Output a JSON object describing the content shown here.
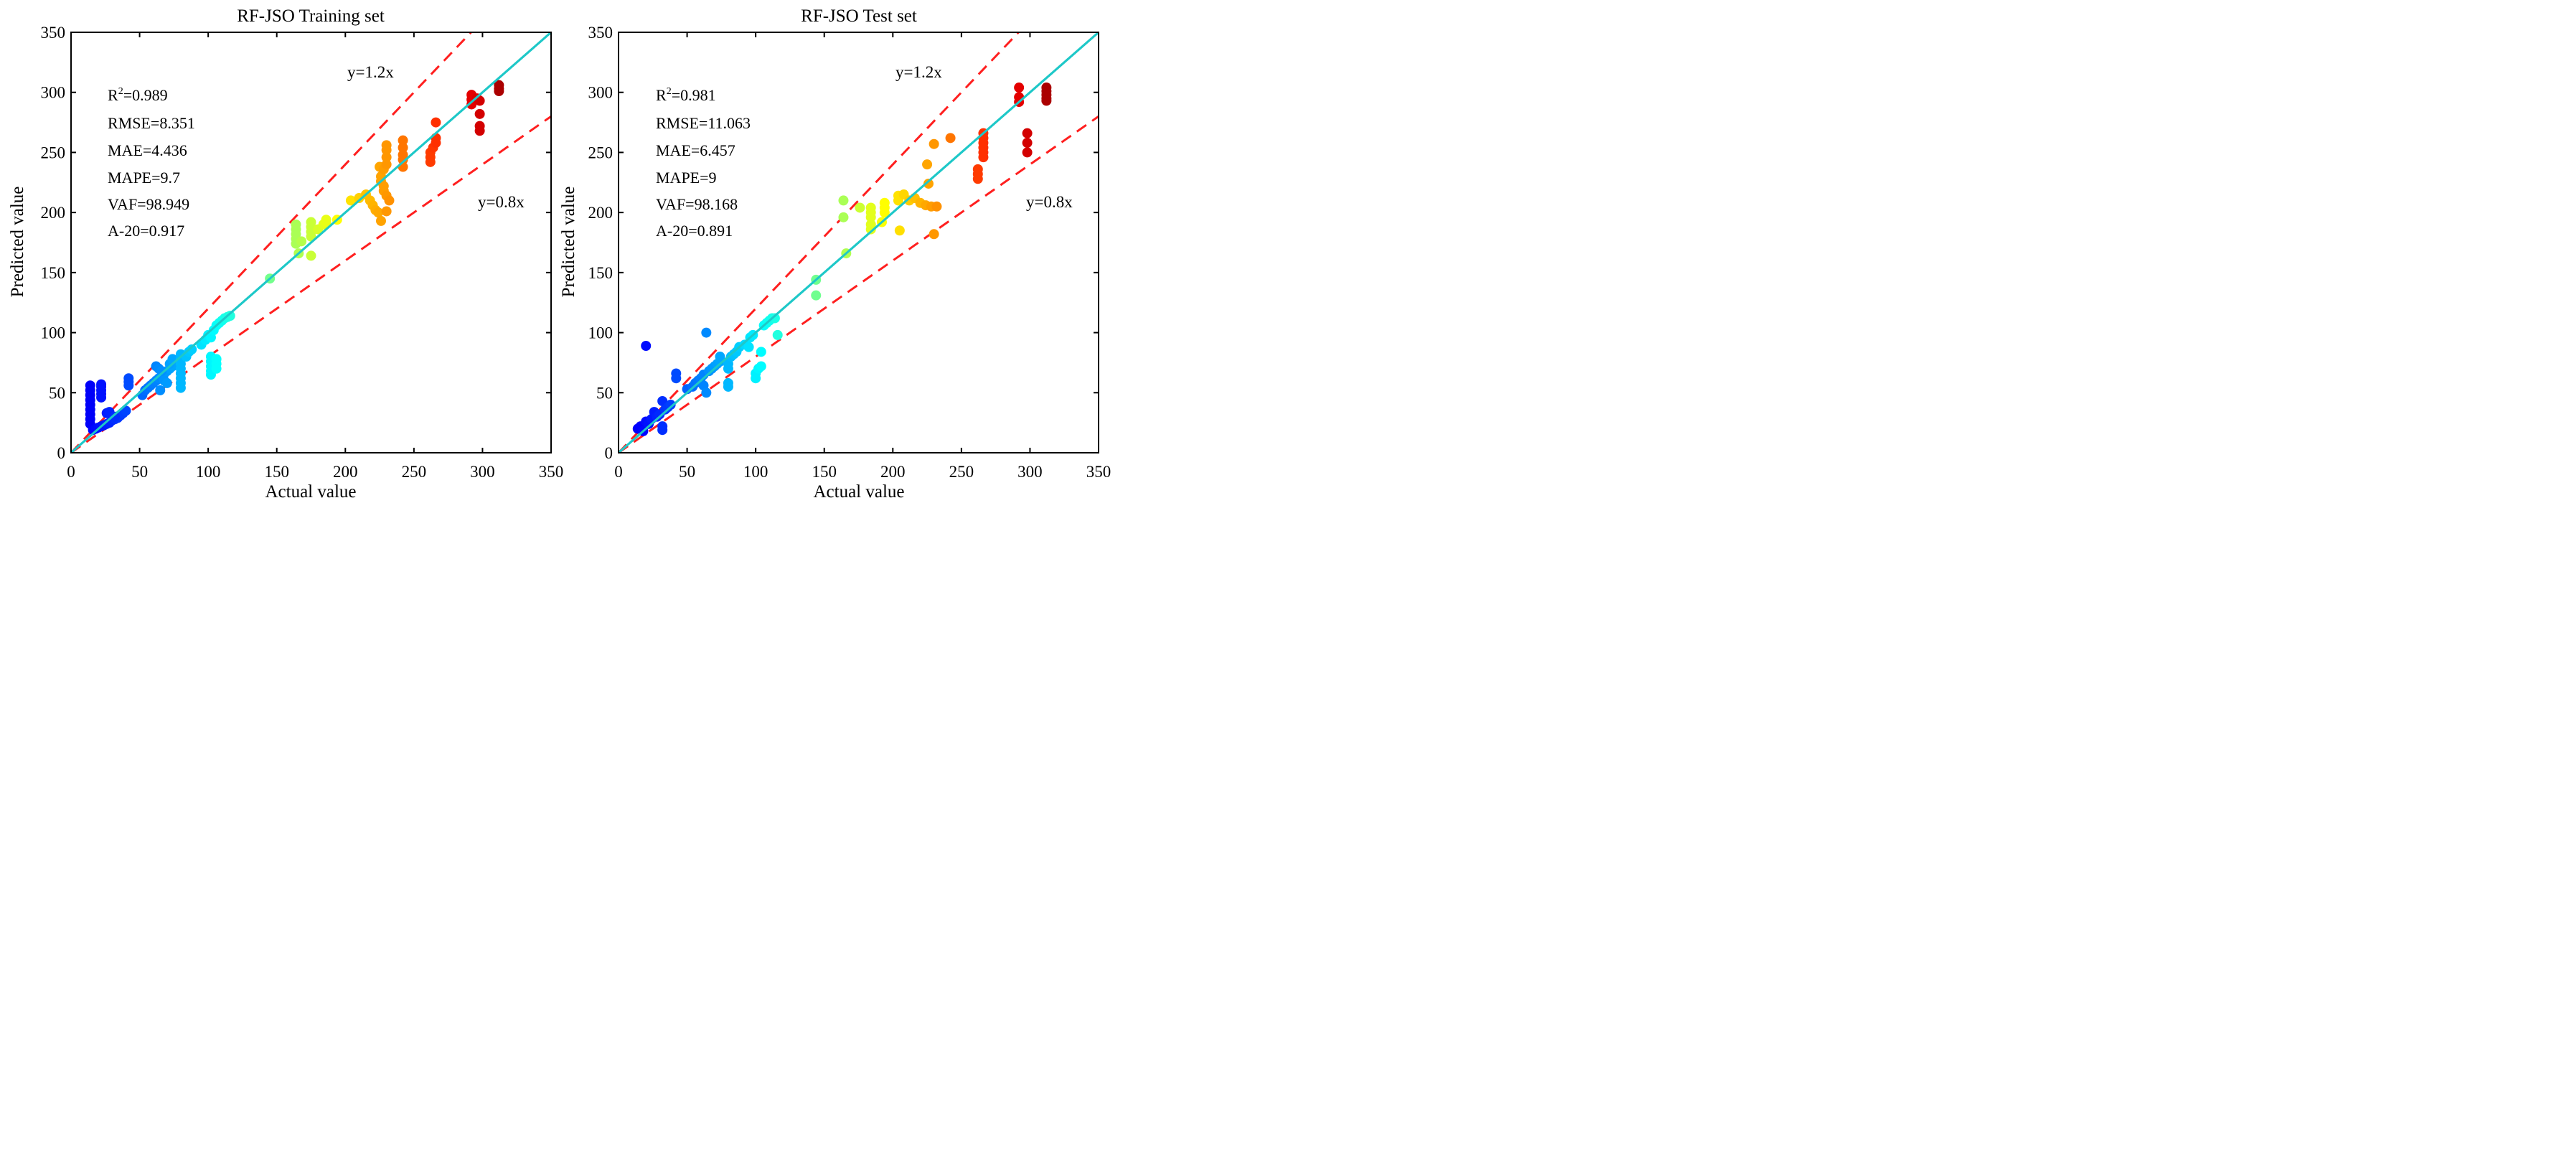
{
  "chart_data": [
    {
      "type": "scatter",
      "title": "RF-JSO Training set",
      "xlabel": "Actual value",
      "ylabel": "Predicted value",
      "xlim": [
        0,
        350
      ],
      "ylim": [
        0,
        350
      ],
      "xticks": [
        "0",
        "50",
        "100",
        "150",
        "200",
        "250",
        "300",
        "350"
      ],
      "yticks": [
        "0",
        "50",
        "100",
        "150",
        "200",
        "250",
        "300",
        "350"
      ],
      "stats": [
        "R²=0.989",
        "RMSE=8.351",
        "MAE=4.436",
        "MAPE=9.7",
        "VAF=98.949",
        "A-20=0.917"
      ],
      "reference_lines": [
        {
          "label": "y=1.2x",
          "slope": 1.2,
          "color": "#ff1f1f",
          "style": "dashed"
        },
        {
          "label": "y=0.8x",
          "slope": 0.8,
          "color": "#ff1f1f",
          "style": "dashed"
        },
        {
          "label": "y=x",
          "slope": 1.0,
          "color": "#1ec8c8",
          "style": "solid"
        }
      ],
      "points": [
        [
          14,
          56
        ],
        [
          14,
          52
        ],
        [
          14,
          48
        ],
        [
          14,
          44
        ],
        [
          14,
          40
        ],
        [
          14,
          36
        ],
        [
          14,
          32
        ],
        [
          14,
          28
        ],
        [
          14,
          24
        ],
        [
          16,
          19
        ],
        [
          18,
          20
        ],
        [
          20,
          21
        ],
        [
          22,
          22
        ],
        [
          24,
          23
        ],
        [
          26,
          24
        ],
        [
          28,
          25
        ],
        [
          30,
          27
        ],
        [
          32,
          28
        ],
        [
          34,
          29
        ],
        [
          36,
          31
        ],
        [
          38,
          33
        ],
        [
          40,
          35
        ],
        [
          22,
          57
        ],
        [
          22,
          55
        ],
        [
          22,
          52
        ],
        [
          22,
          49
        ],
        [
          22,
          46
        ],
        [
          26,
          33
        ],
        [
          28,
          34
        ],
        [
          32,
          30
        ],
        [
          42,
          62
        ],
        [
          42,
          59
        ],
        [
          42,
          56
        ],
        [
          52,
          48
        ],
        [
          54,
          52
        ],
        [
          56,
          54
        ],
        [
          58,
          56
        ],
        [
          60,
          58
        ],
        [
          62,
          60
        ],
        [
          64,
          62
        ],
        [
          66,
          64
        ],
        [
          68,
          66
        ],
        [
          70,
          68
        ],
        [
          72,
          70
        ],
        [
          74,
          72
        ],
        [
          62,
          72
        ],
        [
          64,
          70
        ],
        [
          66,
          68
        ],
        [
          68,
          60
        ],
        [
          70,
          58
        ],
        [
          65,
          52
        ],
        [
          72,
          74
        ],
        [
          74,
          78
        ],
        [
          80,
          82
        ],
        [
          80,
          78
        ],
        [
          80,
          74
        ],
        [
          80,
          70
        ],
        [
          80,
          66
        ],
        [
          80,
          62
        ],
        [
          80,
          58
        ],
        [
          80,
          54
        ],
        [
          84,
          80
        ],
        [
          86,
          84
        ],
        [
          88,
          86
        ],
        [
          102,
          80
        ],
        [
          102,
          76
        ],
        [
          102,
          72
        ],
        [
          102,
          68
        ],
        [
          102,
          65
        ],
        [
          106,
          78
        ],
        [
          106,
          74
        ],
        [
          106,
          70
        ],
        [
          95,
          90
        ],
        [
          98,
          94
        ],
        [
          100,
          98
        ],
        [
          102,
          96
        ],
        [
          104,
          102
        ],
        [
          106,
          106
        ],
        [
          108,
          108
        ],
        [
          110,
          110
        ],
        [
          112,
          112
        ],
        [
          114,
          113
        ],
        [
          116,
          114
        ],
        [
          145,
          145
        ],
        [
          164,
          190
        ],
        [
          164,
          186
        ],
        [
          164,
          182
        ],
        [
          164,
          178
        ],
        [
          164,
          174
        ],
        [
          166,
          166
        ],
        [
          168,
          176
        ],
        [
          175,
          192
        ],
        [
          175,
          188
        ],
        [
          175,
          184
        ],
        [
          175,
          180
        ],
        [
          175,
          164
        ],
        [
          180,
          186
        ],
        [
          184,
          190
        ],
        [
          186,
          192
        ],
        [
          186,
          194
        ],
        [
          194,
          194
        ],
        [
          204,
          210
        ],
        [
          210,
          212
        ],
        [
          215,
          215
        ],
        [
          218,
          210
        ],
        [
          220,
          206
        ],
        [
          222,
          202
        ],
        [
          224,
          200
        ],
        [
          226,
          230
        ],
        [
          226,
          226
        ],
        [
          228,
          222
        ],
        [
          228,
          218
        ],
        [
          230,
          214
        ],
        [
          230,
          201
        ],
        [
          232,
          210
        ],
        [
          226,
          193
        ],
        [
          225,
          238
        ],
        [
          228,
          236
        ],
        [
          230,
          240
        ],
        [
          230,
          246
        ],
        [
          230,
          252
        ],
        [
          230,
          256
        ],
        [
          242,
          260
        ],
        [
          242,
          254
        ],
        [
          242,
          248
        ],
        [
          242,
          244
        ],
        [
          242,
          238
        ],
        [
          262,
          242
        ],
        [
          262,
          246
        ],
        [
          262,
          250
        ],
        [
          264,
          254
        ],
        [
          266,
          258
        ],
        [
          266,
          262
        ],
        [
          292,
          298
        ],
        [
          292,
          294
        ],
        [
          292,
          290
        ],
        [
          296,
          295
        ],
        [
          298,
          293
        ],
        [
          298,
          282
        ],
        [
          298,
          272
        ],
        [
          298,
          268
        ],
        [
          266,
          275
        ],
        [
          312,
          306
        ],
        [
          312,
          303
        ],
        [
          312,
          301
        ]
      ]
    },
    {
      "type": "scatter",
      "title": "RF-JSO Test set",
      "xlabel": "Actual value",
      "ylabel": "Predicted value",
      "xlim": [
        0,
        350
      ],
      "ylim": [
        0,
        350
      ],
      "xticks": [
        "0",
        "50",
        "100",
        "150",
        "200",
        "250",
        "300",
        "350"
      ],
      "yticks": [
        "0",
        "50",
        "100",
        "150",
        "200",
        "250",
        "300",
        "350"
      ],
      "stats": [
        "R²=0.981",
        "RMSE=11.063",
        "MAE=6.457",
        "MAPE=9",
        "VAF=98.168",
        "A-20=0.891"
      ],
      "reference_lines": [
        {
          "label": "y=1.2x",
          "slope": 1.2,
          "color": "#ff1f1f",
          "style": "dashed"
        },
        {
          "label": "y=0.8x",
          "slope": 0.8,
          "color": "#ff1f1f",
          "style": "dashed"
        },
        {
          "label": "y=x",
          "slope": 1.0,
          "color": "#1ec8c8",
          "style": "solid"
        }
      ],
      "points": [
        [
          14,
          20
        ],
        [
          16,
          22
        ],
        [
          18,
          18
        ],
        [
          20,
          26
        ],
        [
          22,
          24
        ],
        [
          24,
          28
        ],
        [
          26,
          34
        ],
        [
          28,
          30
        ],
        [
          30,
          32
        ],
        [
          32,
          43
        ],
        [
          32,
          22
        ],
        [
          32,
          19
        ],
        [
          34,
          36
        ],
        [
          36,
          38
        ],
        [
          38,
          40
        ],
        [
          20,
          89
        ],
        [
          42,
          66
        ],
        [
          42,
          62
        ],
        [
          50,
          53
        ],
        [
          54,
          55
        ],
        [
          56,
          58
        ],
        [
          58,
          60
        ],
        [
          60,
          62
        ],
        [
          62,
          65
        ],
        [
          62,
          56
        ],
        [
          64,
          50
        ],
        [
          64,
          100
        ],
        [
          66,
          68
        ],
        [
          68,
          70
        ],
        [
          70,
          72
        ],
        [
          72,
          74
        ],
        [
          74,
          76
        ],
        [
          74,
          80
        ],
        [
          80,
          74
        ],
        [
          80,
          70
        ],
        [
          80,
          58
        ],
        [
          80,
          55
        ],
        [
          82,
          80
        ],
        [
          84,
          82
        ],
        [
          86,
          84
        ],
        [
          88,
          88
        ],
        [
          92,
          90
        ],
        [
          95,
          88
        ],
        [
          96,
          96
        ],
        [
          98,
          98
        ],
        [
          100,
          66
        ],
        [
          100,
          62
        ],
        [
          102,
          70
        ],
        [
          104,
          72
        ],
        [
          104,
          84
        ],
        [
          106,
          106
        ],
        [
          108,
          108
        ],
        [
          110,
          110
        ],
        [
          112,
          112
        ],
        [
          114,
          112
        ],
        [
          116,
          98
        ],
        [
          144,
          144
        ],
        [
          144,
          131
        ],
        [
          166,
          166
        ],
        [
          184,
          190
        ],
        [
          184,
          186
        ],
        [
          192,
          192
        ],
        [
          205,
          185
        ],
        [
          230,
          182
        ],
        [
          164,
          210
        ],
        [
          164,
          196
        ],
        [
          176,
          204
        ],
        [
          184,
          204
        ],
        [
          184,
          200
        ],
        [
          184,
          196
        ],
        [
          194,
          208
        ],
        [
          194,
          204
        ],
        [
          194,
          200
        ],
        [
          204,
          214
        ],
        [
          204,
          210
        ],
        [
          208,
          215
        ],
        [
          212,
          210
        ],
        [
          216,
          212
        ],
        [
          220,
          208
        ],
        [
          224,
          206
        ],
        [
          226,
          224
        ],
        [
          228,
          205
        ],
        [
          232,
          205
        ],
        [
          225,
          240
        ],
        [
          230,
          257
        ],
        [
          242,
          262
        ],
        [
          262,
          228
        ],
        [
          262,
          232
        ],
        [
          262,
          236
        ],
        [
          266,
          266
        ],
        [
          266,
          262
        ],
        [
          266,
          258
        ],
        [
          266,
          254
        ],
        [
          266,
          250
        ],
        [
          266,
          246
        ],
        [
          298,
          266
        ],
        [
          298,
          258
        ],
        [
          298,
          250
        ],
        [
          292,
          304
        ],
        [
          292,
          296
        ],
        [
          292,
          292
        ],
        [
          312,
          304
        ],
        [
          312,
          301
        ],
        [
          312,
          298
        ],
        [
          312,
          295
        ],
        [
          312,
          293
        ]
      ]
    }
  ]
}
